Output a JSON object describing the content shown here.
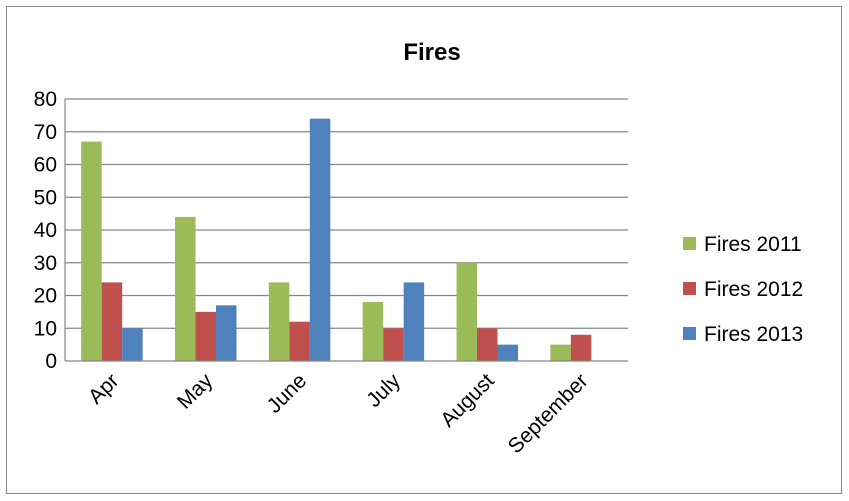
{
  "chart_data": {
    "type": "bar",
    "title": "Fires",
    "xlabel": "",
    "ylabel": "",
    "categories": [
      "Apr",
      "May",
      "June",
      "July",
      "August",
      "September"
    ],
    "series": [
      {
        "name": "Fires 2011",
        "color": "#9BBB59",
        "values": [
          67,
          44,
          24,
          18,
          30,
          5
        ]
      },
      {
        "name": "Fires 2012",
        "color": "#C0504D",
        "values": [
          24,
          15,
          12,
          10,
          10,
          8
        ]
      },
      {
        "name": "Fires 2013",
        "color": "#4F81BD",
        "values": [
          10,
          17,
          74,
          24,
          5,
          null
        ]
      }
    ],
    "ylim": [
      0,
      80
    ],
    "yticks": [
      0,
      10,
      20,
      30,
      40,
      50,
      60,
      70,
      80
    ],
    "grid": true,
    "legend_position": "right"
  }
}
